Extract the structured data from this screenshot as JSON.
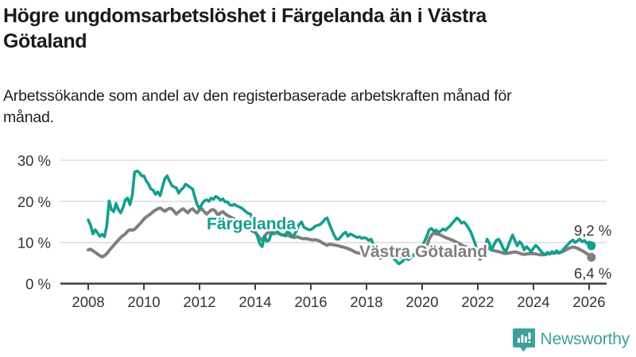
{
  "header": {
    "title": "Högre ungdomsarbetslöshet i Färgelanda än i Västra Götaland",
    "subtitle": "Arbetssökande som andel av den registerbaserade arbetskraften månad för månad."
  },
  "footer": {
    "brand": "Newsworthy",
    "logo_icon": "chart-speech-bubble-icon",
    "brand_color": "#3f9f9c"
  },
  "colors": {
    "accent_teal": "#149E8F",
    "neutral_gray": "#7F7F7F",
    "grid": "#DDDDDD",
    "axis": "#3F3F3F"
  },
  "chart_data": {
    "type": "line",
    "title": "Högre ungdomsarbetslöshet i Färgelanda än i Västra Götaland",
    "xlabel": "",
    "ylabel": "",
    "x_start_year": 2008,
    "x_step_months": 1,
    "x_end_label_period": "2026-02",
    "ylim": [
      0,
      30
    ],
    "xlim": [
      2007.5,
      2026.6
    ],
    "grid": "horizontal",
    "legend_position": "inline-labels",
    "y_ticks": [
      {
        "value": 0,
        "label": "0 %"
      },
      {
        "value": 10,
        "label": "10 %"
      },
      {
        "value": 20,
        "label": "20 %"
      },
      {
        "value": 30,
        "label": "30 %"
      }
    ],
    "x_ticks": [
      {
        "value": 2008,
        "label": "2008"
      },
      {
        "value": 2010,
        "label": "2010"
      },
      {
        "value": 2012,
        "label": "2012"
      },
      {
        "value": 2014,
        "label": "2014"
      },
      {
        "value": 2016,
        "label": "2016"
      },
      {
        "value": 2018,
        "label": "2018"
      },
      {
        "value": 2020,
        "label": "2020"
      },
      {
        "value": 2022,
        "label": "2022"
      },
      {
        "value": 2024,
        "label": "2024"
      },
      {
        "value": 2026,
        "label": "2026"
      }
    ],
    "series": [
      {
        "name": "Färgelanda",
        "color": "#149E8F",
        "end_label": "9,2 %",
        "end_value": 9.2,
        "values": [
          15.5,
          14.2,
          12.1,
          13.1,
          12.3,
          11.5,
          12.0,
          11.4,
          14.0,
          20.1,
          18.0,
          17.5,
          19.5,
          18.0,
          17.2,
          18.5,
          20.4,
          20.8,
          19.2,
          21.5,
          27.1,
          27.4,
          27.0,
          26.2,
          26.2,
          25.0,
          24.2,
          23.0,
          22.7,
          21.7,
          22.3,
          21.4,
          23.5,
          25.5,
          26.2,
          25.0,
          23.9,
          23.5,
          23.3,
          22.0,
          22.8,
          23.3,
          24.2,
          23.8,
          23.4,
          23.0,
          21.0,
          19.2,
          18.2,
          19.3,
          20.1,
          20.4,
          20.0,
          20.8,
          20.5,
          21.2,
          20.9,
          20.3,
          20.6,
          19.9,
          19.9,
          19.2,
          19.0,
          19.3,
          18.9,
          18.7,
          18.4,
          18.0,
          17.5,
          17.1,
          16.9,
          15.5,
          12.7,
          11.4,
          9.7,
          9.0,
          11.6,
          10.3,
          10.6,
          12.3,
          12.6,
          13.1,
          12.4,
          11.9,
          11.9,
          11.8,
          12.8,
          12.2,
          11.5,
          12.0,
          13.2,
          14.4,
          15.0,
          13.7,
          13.4,
          13.1,
          13.1,
          13.5,
          14.0,
          14.2,
          14.4,
          14.9,
          15.6,
          16.0,
          14.5,
          13.1,
          11.8,
          10.8,
          10.8,
          11.4,
          12.1,
          12.5,
          11.5,
          12.1,
          11.8,
          11.5,
          11.2,
          11.4,
          11.0,
          11.2,
          11.0,
          10.5,
          10.8,
          9.5,
          8.3,
          7.0,
          6.1,
          6.8,
          7.4,
          6.6,
          7.0,
          6.4,
          6.0,
          5.4,
          4.8,
          5.2,
          5.7,
          6.4,
          5.8,
          6.2,
          6.8,
          7.4,
          8.0,
          8.6,
          9.2,
          10.2,
          11.5,
          13.1,
          13.4,
          12.8,
          13.0,
          12.5,
          12.8,
          13.3,
          13.0,
          13.5,
          14.0,
          14.7,
          15.3,
          16.0,
          15.5,
          14.7,
          15.0,
          14.4,
          13.5,
          12.5,
          11.0,
          9.5,
          7.5,
          5.9,
          6.5,
          8.5,
          10.8,
          9.8,
          8.1,
          9.5,
          10.5,
          10.8,
          9.8,
          8.5,
          7.7,
          9.0,
          10.5,
          11.8,
          10.5,
          9.2,
          10.2,
          9.6,
          8.2,
          9.0,
          8.4,
          7.8,
          8.6,
          9.3,
          8.8,
          8.0,
          7.4,
          7.0,
          7.6,
          7.2,
          7.8,
          7.4,
          8.0,
          7.4,
          7.6,
          8.4,
          9.0,
          9.6,
          10.2,
          10.6,
          10.0,
          10.4,
          10.8,
          10.2,
          10.5,
          9.8,
          10.1,
          9.2
        ]
      },
      {
        "name": "Västra Götaland",
        "color": "#7F7F7F",
        "end_label": "6,4 %",
        "end_value": 6.4,
        "values": [
          8.2,
          8.4,
          8.0,
          7.6,
          7.2,
          6.8,
          6.5,
          6.8,
          7.3,
          8.0,
          8.7,
          9.3,
          10.0,
          10.6,
          11.2,
          11.7,
          12.1,
          12.8,
          13.1,
          13.0,
          13.2,
          13.8,
          14.4,
          15.0,
          15.7,
          16.2,
          16.6,
          17.0,
          17.5,
          17.9,
          18.2,
          18.4,
          18.0,
          17.6,
          18.0,
          18.3,
          18.2,
          17.6,
          16.9,
          17.4,
          17.9,
          18.2,
          17.7,
          17.2,
          17.9,
          18.2,
          17.6,
          17.2,
          17.9,
          18.2,
          17.5,
          16.9,
          17.4,
          17.9,
          18.0,
          17.5,
          16.6,
          17.2,
          17.5,
          17.0,
          16.6,
          16.3,
          16.0,
          15.7,
          15.3,
          15.0,
          14.6,
          14.2,
          13.9,
          13.5,
          13.1,
          12.7,
          12.5,
          11.8,
          11.0,
          10.6,
          11.5,
          12.2,
          12.5,
          12.3,
          12.1,
          12.4,
          12.2,
          12.0,
          11.8,
          11.6,
          11.8,
          11.5,
          11.3,
          11.2,
          11.4,
          11.2,
          11.0,
          10.9,
          11.0,
          10.8,
          10.7,
          10.6,
          10.7,
          10.5,
          10.3,
          9.9,
          9.6,
          9.3,
          9.6,
          9.5,
          9.4,
          9.3,
          9.2,
          9.0,
          8.9,
          8.7,
          8.5,
          8.3,
          8.0,
          7.7,
          7.5,
          7.4,
          7.6,
          7.7,
          7.7,
          7.6,
          7.5,
          7.3,
          7.2,
          7.0,
          6.9,
          6.8,
          6.9,
          6.8,
          6.8,
          6.7,
          6.7,
          6.6,
          6.5,
          6.5,
          6.6,
          6.8,
          6.9,
          6.8,
          6.9,
          7.0,
          7.1,
          7.2,
          7.5,
          7.8,
          9.0,
          10.8,
          11.8,
          12.3,
          12.1,
          12.0,
          11.8,
          11.5,
          11.2,
          11.0,
          10.8,
          10.6,
          10.3,
          10.0,
          9.7,
          9.4,
          9.1,
          8.9,
          8.8,
          8.7,
          8.6,
          8.5,
          8.4,
          8.5,
          8.8,
          9.0,
          8.8,
          8.5,
          8.2,
          8.0,
          7.9,
          7.8,
          7.6,
          7.4,
          7.3,
          7.4,
          7.5,
          7.6,
          7.7,
          7.6,
          7.4,
          7.2,
          7.1,
          7.2,
          7.3,
          7.3,
          7.3,
          7.2,
          7.1,
          7.0,
          7.0,
          7.1,
          7.2,
          7.3,
          7.4,
          7.4,
          7.5,
          7.6,
          7.7,
          7.9,
          8.2,
          8.5,
          8.7,
          8.9,
          8.8,
          8.6,
          8.3,
          8.0,
          7.7,
          7.3,
          6.9,
          6.4
        ]
      }
    ]
  }
}
